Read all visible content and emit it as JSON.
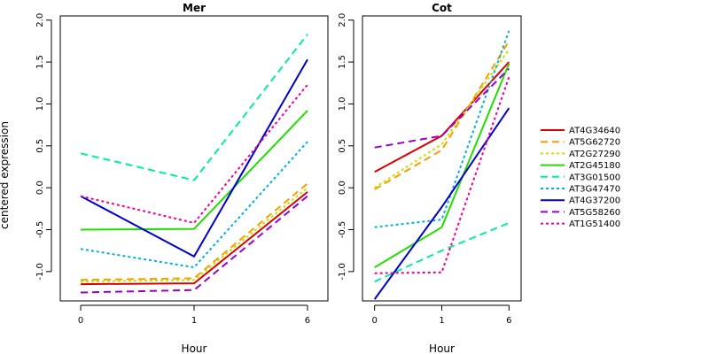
{
  "chart_data": {
    "type": "line",
    "ylabel": "centered expression",
    "xlabel": "Hour",
    "x": [
      0,
      1,
      6
    ],
    "ylim": [
      -1.35,
      2.05
    ],
    "yticks": [
      -1.0,
      -0.5,
      0.0,
      0.5,
      1.0,
      1.5,
      2.0
    ],
    "ytick_labels": [
      "-1.0",
      "-0.5",
      "0.0",
      "0.5",
      "1.0",
      "1.5",
      "2.0"
    ],
    "grid": false,
    "legend_position": "right",
    "series_styles": [
      {
        "name": "AT4G34640",
        "color": "#dd0000",
        "dash": "solid"
      },
      {
        "name": "AT5G62720",
        "color": "#f5a000",
        "dash": "dashed"
      },
      {
        "name": "AT2G27290",
        "color": "#c8e000",
        "dash": "dotted"
      },
      {
        "name": "AT2G45180",
        "color": "#22dd00",
        "dash": "solid"
      },
      {
        "name": "AT3G01500",
        "color": "#00eea0",
        "dash": "dashed"
      },
      {
        "name": "AT3G47470",
        "color": "#00b0dd",
        "dash": "dotted"
      },
      {
        "name": "AT4G37200",
        "color": "#0000cc",
        "dash": "solid"
      },
      {
        "name": "AT5G58260",
        "color": "#9900cc",
        "dash": "dashed"
      },
      {
        "name": "AT1G51400",
        "color": "#ee0099",
        "dash": "dotted"
      }
    ],
    "panels": [
      {
        "title": "Mer",
        "series": [
          {
            "name": "AT4G34640",
            "values": [
              -1.15,
              -1.14,
              -0.05
            ]
          },
          {
            "name": "AT5G62720",
            "values": [
              -1.1,
              -1.08,
              0.05
            ]
          },
          {
            "name": "AT2G27290",
            "values": [
              -1.12,
              -1.1,
              0.0
            ]
          },
          {
            "name": "AT2G45180",
            "values": [
              -0.5,
              -0.49,
              0.92
            ]
          },
          {
            "name": "AT3G01500",
            "values": [
              0.41,
              0.09,
              1.83
            ]
          },
          {
            "name": "AT3G47470",
            "values": [
              -0.73,
              -0.95,
              0.55
            ]
          },
          {
            "name": "AT4G37200",
            "values": [
              -0.1,
              -0.82,
              1.53
            ]
          },
          {
            "name": "AT5G58260",
            "values": [
              -1.25,
              -1.22,
              -0.1
            ]
          },
          {
            "name": "AT1G51400",
            "values": [
              -0.1,
              -0.42,
              1.23
            ]
          }
        ]
      },
      {
        "title": "Cot",
        "series": [
          {
            "name": "AT4G34640",
            "values": [
              0.19,
              0.62,
              1.5
            ]
          },
          {
            "name": "AT5G62720",
            "values": [
              -0.02,
              0.45,
              1.75
            ]
          },
          {
            "name": "AT2G27290",
            "values": [
              0.0,
              0.52,
              1.65
            ]
          },
          {
            "name": "AT2G45180",
            "values": [
              -0.95,
              -0.47,
              1.48
            ]
          },
          {
            "name": "AT3G01500",
            "values": [
              -1.12,
              -0.75,
              -0.42
            ]
          },
          {
            "name": "AT3G47470",
            "values": [
              -0.47,
              -0.38,
              1.87
            ]
          },
          {
            "name": "AT4G37200",
            "values": [
              -1.33,
              -0.23,
              0.95
            ]
          },
          {
            "name": "AT5G58260",
            "values": [
              0.48,
              0.62,
              1.42
            ]
          },
          {
            "name": "AT1G51400",
            "values": [
              -1.02,
              -1.01,
              1.32
            ]
          }
        ]
      }
    ]
  }
}
